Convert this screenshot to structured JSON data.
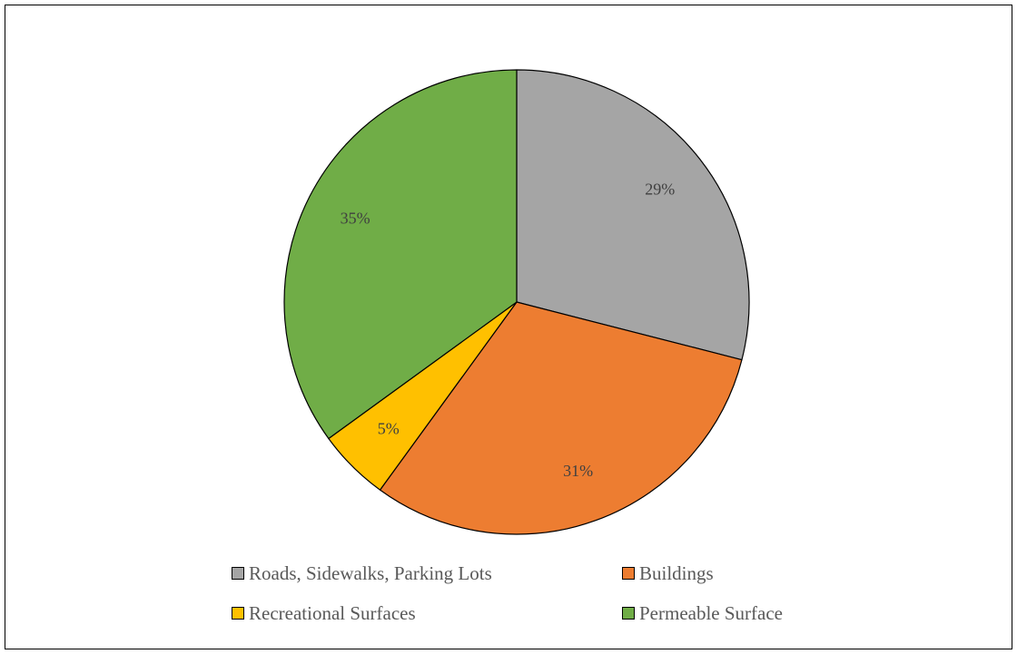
{
  "chart_data": {
    "type": "pie",
    "title": "",
    "categories": [
      "Roads, Sidewalks, Parking Lots",
      "Buildings",
      "Recreational Surfaces",
      "Permeable Surface"
    ],
    "values": [
      29,
      31,
      5,
      35
    ],
    "data_labels": [
      "29%",
      "31%",
      "5%",
      "35%"
    ],
    "colors": [
      "#a5a5a5",
      "#ed7d31",
      "#ffc000",
      "#70ad47"
    ],
    "start_angle": "12 o'clock",
    "direction": "clockwise",
    "legend_position": "bottom"
  },
  "legend": {
    "items": [
      {
        "label": "Roads, Sidewalks, Parking Lots",
        "color": "#a5a5a5"
      },
      {
        "label": "Buildings",
        "color": "#ed7d31"
      },
      {
        "label": "Recreational Surfaces",
        "color": "#ffc000"
      },
      {
        "label": "Permeable Surface",
        "color": "#70ad47"
      }
    ]
  }
}
